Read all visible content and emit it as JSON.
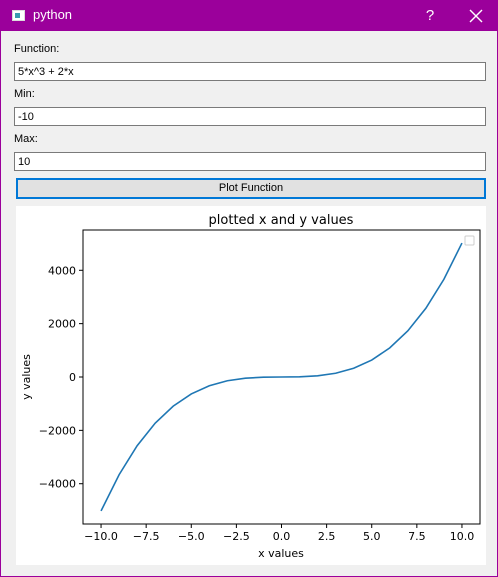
{
  "window": {
    "title": "python",
    "icon": "python-app-icon",
    "help_label": "?",
    "close_icon": "close-icon",
    "accent_color": "#9b009b"
  },
  "form": {
    "function_label": "Function:",
    "function_value": "5*x^3 + 2*x",
    "min_label": "Min:",
    "min_value": "-10",
    "max_label": "Max:",
    "max_value": "10",
    "plot_button_label": "Plot Function"
  },
  "chart_data": {
    "type": "line",
    "title": "plotted x and y values",
    "xlabel": "x values",
    "ylabel": "y values",
    "xlim": [
      -11.0,
      11.0
    ],
    "ylim": [
      -5510,
      5510
    ],
    "x_ticks": [
      -10,
      -7.5,
      -5,
      -2.5,
      0,
      2.5,
      5,
      7.5,
      10
    ],
    "x_tick_labels": [
      "−10.0",
      "−7.5",
      "−5.0",
      "−2.5",
      "0.0",
      "2.5",
      "5.0",
      "7.5",
      "10.0"
    ],
    "y_ticks": [
      -4000,
      -2000,
      0,
      2000,
      4000
    ],
    "y_tick_labels": [
      "−4000",
      "−2000",
      "0",
      "2000",
      "4000"
    ],
    "legend": "upper right, empty",
    "grid": false,
    "series": [
      {
        "color": "#1f77b4",
        "x": [
          -10,
          -9,
          -8,
          -7,
          -6,
          -5,
          -4,
          -3,
          -2,
          -1,
          0,
          1,
          2,
          3,
          4,
          5,
          6,
          7,
          8,
          9,
          10
        ],
        "y": [
          -5020,
          -3663,
          -2576,
          -1729,
          -1092,
          -635,
          -328,
          -141,
          -44,
          -7,
          0,
          7,
          44,
          141,
          328,
          635,
          1092,
          1729,
          2576,
          3663,
          5020
        ]
      }
    ]
  }
}
